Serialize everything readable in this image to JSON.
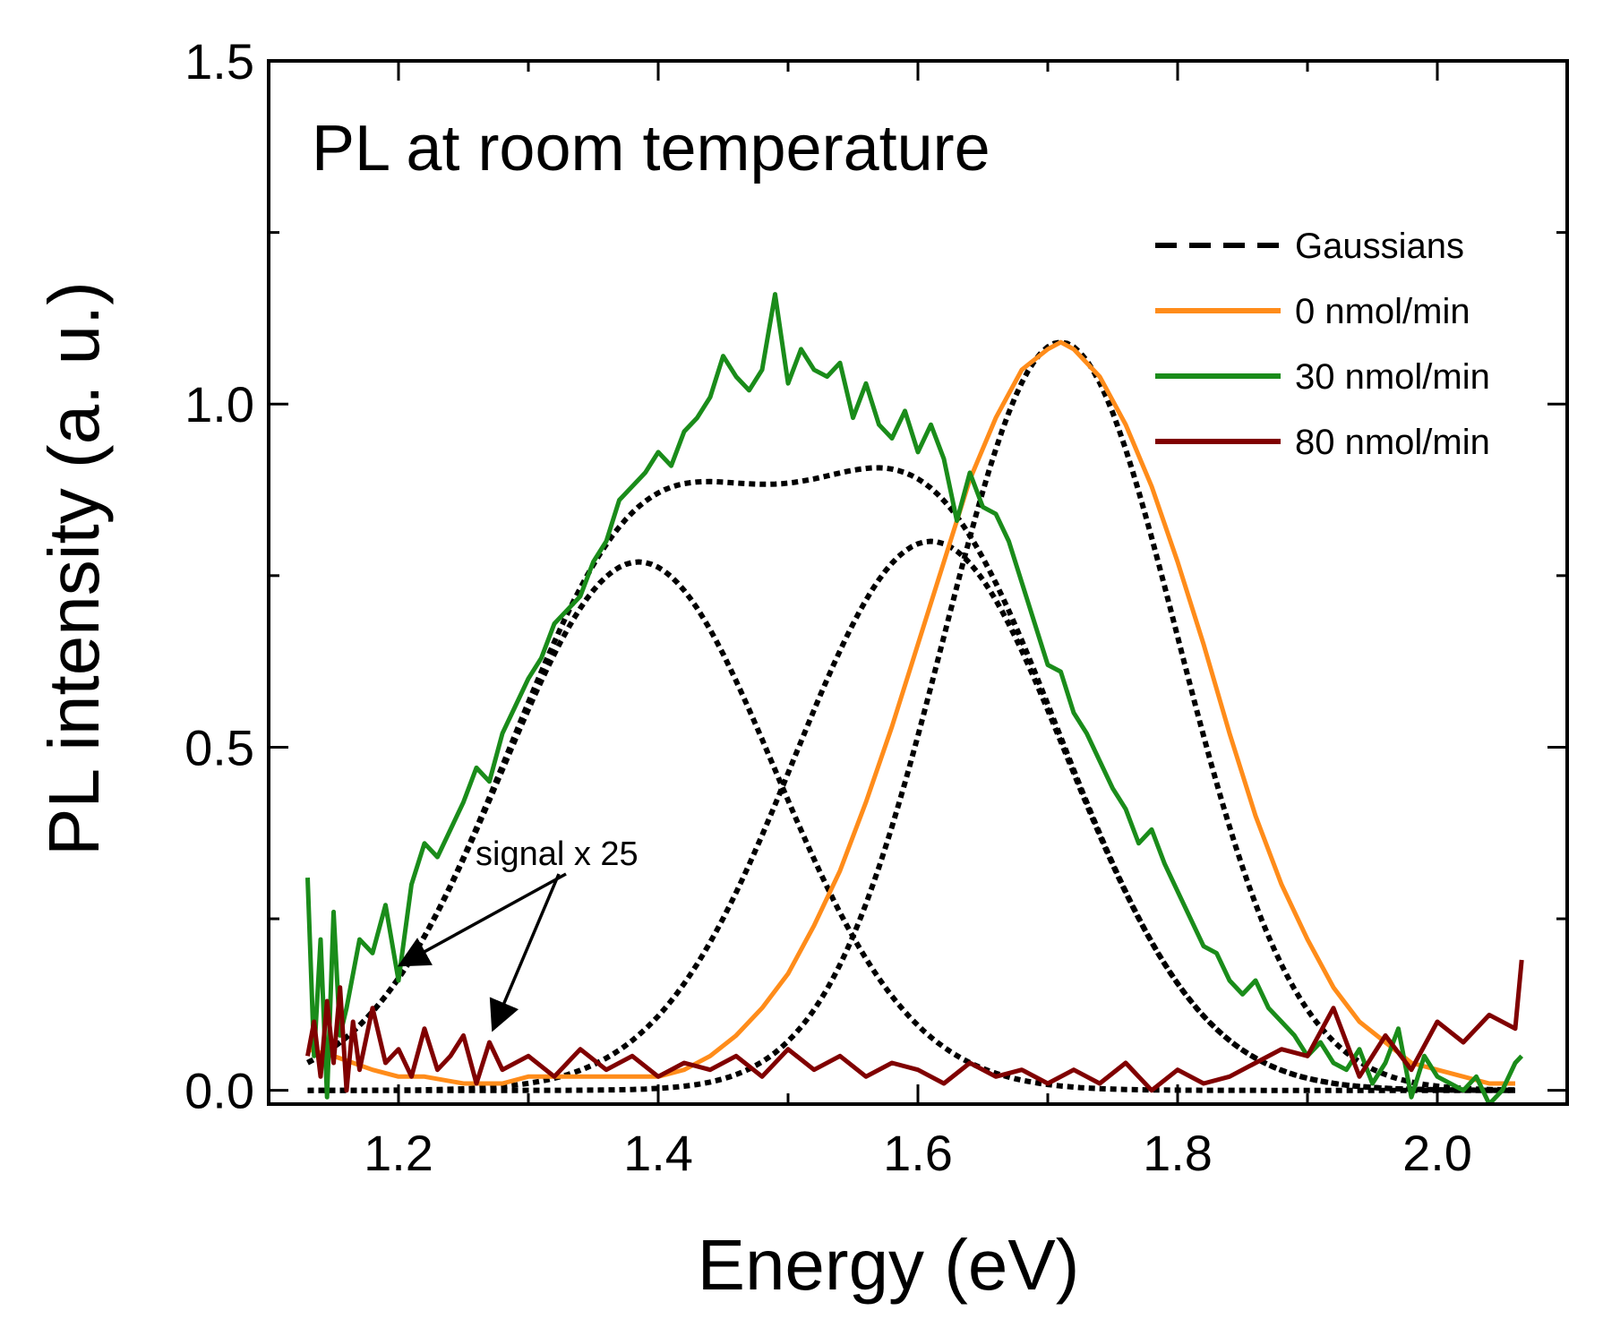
{
  "chart_data": {
    "type": "line",
    "title": "",
    "annotation": "PL at room temperature",
    "xlabel": "Energy (eV)",
    "ylabel": "PL intensity (a. u.)",
    "xlim": [
      1.1,
      2.1
    ],
    "ylim": [
      -0.02,
      1.5
    ],
    "xticks": [
      1.2,
      1.4,
      1.6,
      1.8,
      2.0
    ],
    "xtick_labels": [
      "1.2",
      "1.4",
      "1.6",
      "1.8",
      "2.0"
    ],
    "yticks": [
      0.0,
      0.5,
      1.0,
      1.5
    ],
    "ytick_labels": [
      "0.0",
      "0.5",
      "1.0",
      "1.5"
    ],
    "grid": false,
    "legend_position": "top-right",
    "legend": [
      "Gaussians",
      "0 nmol/min",
      "30 nmol/min",
      "80 nmol/min"
    ],
    "arrow_note": "signal x 25",
    "colors": {
      "gaussians": "#000000",
      "0 nmol/min": "#ff8c1a",
      "30 nmol/min": "#1a8c1a",
      "80 nmol/min": "#800000"
    },
    "series": [
      {
        "name": "0 nmol/min",
        "color": "#ff8c1a",
        "style": "solid",
        "x": [
          1.13,
          1.15,
          1.18,
          1.2,
          1.22,
          1.25,
          1.28,
          1.3,
          1.33,
          1.36,
          1.38,
          1.4,
          1.42,
          1.44,
          1.46,
          1.48,
          1.5,
          1.52,
          1.54,
          1.56,
          1.58,
          1.6,
          1.62,
          1.64,
          1.66,
          1.68,
          1.7,
          1.71,
          1.72,
          1.74,
          1.76,
          1.78,
          1.8,
          1.82,
          1.84,
          1.86,
          1.88,
          1.9,
          1.92,
          1.94,
          1.96,
          1.98,
          2.0,
          2.02,
          2.04,
          2.06
        ],
        "y": [
          0.06,
          0.05,
          0.03,
          0.02,
          0.02,
          0.01,
          0.01,
          0.02,
          0.02,
          0.02,
          0.02,
          0.02,
          0.03,
          0.05,
          0.08,
          0.12,
          0.17,
          0.24,
          0.32,
          0.42,
          0.53,
          0.65,
          0.77,
          0.89,
          0.98,
          1.05,
          1.08,
          1.09,
          1.08,
          1.04,
          0.97,
          0.88,
          0.77,
          0.65,
          0.52,
          0.4,
          0.3,
          0.22,
          0.15,
          0.1,
          0.07,
          0.04,
          0.03,
          0.02,
          0.01,
          0.01
        ]
      },
      {
        "name": "30 nmol/min",
        "color": "#1a8c1a",
        "style": "solid",
        "x": [
          1.13,
          1.135,
          1.14,
          1.145,
          1.15,
          1.155,
          1.16,
          1.17,
          1.18,
          1.19,
          1.2,
          1.21,
          1.22,
          1.23,
          1.24,
          1.25,
          1.26,
          1.27,
          1.28,
          1.29,
          1.3,
          1.31,
          1.32,
          1.33,
          1.34,
          1.35,
          1.36,
          1.37,
          1.38,
          1.39,
          1.4,
          1.41,
          1.42,
          1.43,
          1.44,
          1.45,
          1.46,
          1.47,
          1.48,
          1.49,
          1.5,
          1.51,
          1.52,
          1.53,
          1.54,
          1.55,
          1.56,
          1.57,
          1.58,
          1.59,
          1.6,
          1.61,
          1.62,
          1.63,
          1.64,
          1.65,
          1.66,
          1.67,
          1.68,
          1.69,
          1.7,
          1.71,
          1.72,
          1.73,
          1.74,
          1.75,
          1.76,
          1.77,
          1.78,
          1.79,
          1.8,
          1.81,
          1.82,
          1.83,
          1.84,
          1.85,
          1.86,
          1.87,
          1.88,
          1.89,
          1.9,
          1.91,
          1.92,
          1.93,
          1.94,
          1.95,
          1.96,
          1.97,
          1.98,
          1.99,
          2.0,
          2.01,
          2.02,
          2.03,
          2.04,
          2.05,
          2.06,
          2.065
        ],
        "y": [
          0.31,
          0.05,
          0.22,
          -0.01,
          0.26,
          0.08,
          0.12,
          0.22,
          0.2,
          0.27,
          0.16,
          0.3,
          0.36,
          0.34,
          0.38,
          0.42,
          0.47,
          0.45,
          0.52,
          0.56,
          0.6,
          0.63,
          0.68,
          0.7,
          0.72,
          0.77,
          0.8,
          0.86,
          0.88,
          0.9,
          0.93,
          0.91,
          0.96,
          0.98,
          1.01,
          1.07,
          1.04,
          1.02,
          1.05,
          1.16,
          1.03,
          1.08,
          1.05,
          1.04,
          1.06,
          0.98,
          1.03,
          0.97,
          0.95,
          0.99,
          0.93,
          0.97,
          0.92,
          0.83,
          0.9,
          0.85,
          0.84,
          0.8,
          0.74,
          0.68,
          0.62,
          0.61,
          0.55,
          0.52,
          0.48,
          0.44,
          0.41,
          0.36,
          0.38,
          0.33,
          0.29,
          0.25,
          0.21,
          0.2,
          0.16,
          0.14,
          0.16,
          0.12,
          0.1,
          0.08,
          0.05,
          0.07,
          0.04,
          0.03,
          0.06,
          0.01,
          0.04,
          0.09,
          -0.01,
          0.05,
          0.02,
          0.01,
          0.0,
          0.02,
          -0.02,
          0.0,
          0.04,
          0.05
        ]
      },
      {
        "name": "80 nmol/min",
        "color": "#800000",
        "style": "solid",
        "x": [
          1.13,
          1.135,
          1.14,
          1.145,
          1.15,
          1.155,
          1.16,
          1.165,
          1.17,
          1.18,
          1.19,
          1.2,
          1.21,
          1.22,
          1.23,
          1.24,
          1.25,
          1.26,
          1.27,
          1.28,
          1.3,
          1.32,
          1.34,
          1.36,
          1.38,
          1.4,
          1.42,
          1.44,
          1.46,
          1.48,
          1.5,
          1.52,
          1.54,
          1.56,
          1.58,
          1.6,
          1.62,
          1.64,
          1.66,
          1.68,
          1.7,
          1.72,
          1.74,
          1.76,
          1.78,
          1.8,
          1.82,
          1.84,
          1.86,
          1.88,
          1.9,
          1.92,
          1.94,
          1.96,
          1.98,
          2.0,
          2.02,
          2.04,
          2.06,
          2.065
        ],
        "y": [
          0.05,
          0.1,
          0.02,
          0.13,
          0.04,
          0.15,
          0.0,
          0.1,
          0.03,
          0.12,
          0.04,
          0.06,
          0.02,
          0.09,
          0.03,
          0.05,
          0.08,
          0.01,
          0.07,
          0.03,
          0.05,
          0.02,
          0.06,
          0.03,
          0.05,
          0.02,
          0.04,
          0.03,
          0.05,
          0.02,
          0.06,
          0.03,
          0.05,
          0.02,
          0.04,
          0.03,
          0.01,
          0.04,
          0.02,
          0.03,
          0.01,
          0.03,
          0.01,
          0.04,
          0.0,
          0.03,
          0.01,
          0.02,
          0.04,
          0.06,
          0.05,
          0.12,
          0.02,
          0.08,
          0.03,
          0.1,
          0.07,
          0.11,
          0.09,
          0.19
        ]
      },
      {
        "name": "Gaussians",
        "kind": "gaussian",
        "color": "#000000",
        "style": "dashed",
        "components": [
          {
            "amp": 0.77,
            "center": 1.385,
            "sigma": 0.105
          },
          {
            "amp": 0.8,
            "center": 1.61,
            "sigma": 0.105
          },
          {
            "amp": 1.09,
            "center": 1.71,
            "sigma": 0.09
          }
        ]
      }
    ]
  }
}
